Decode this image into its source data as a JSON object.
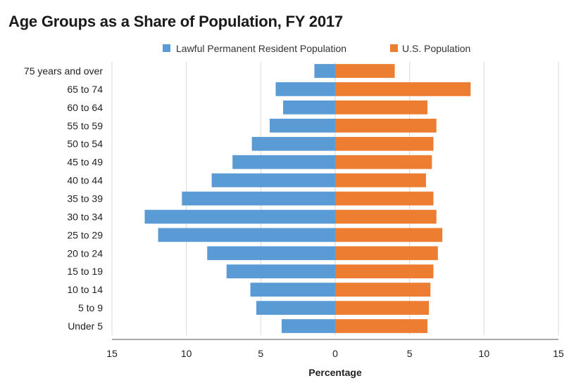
{
  "chart_data": {
    "type": "bar",
    "orientation": "horizontal-diverging",
    "title": "Age Groups as a Share of Population, FY 2017",
    "xlabel": "Percentage",
    "ylabel": "",
    "xlim": [
      -15,
      15
    ],
    "xticks": [
      -15,
      -10,
      -5,
      0,
      5,
      10,
      15
    ],
    "xtick_labels": [
      "15",
      "10",
      "5",
      "0",
      "5",
      "10",
      "15"
    ],
    "grid": true,
    "legend_position": "top",
    "categories": [
      "75 years and over",
      "65 to 74",
      "60 to 64",
      "55 to 59",
      "50 to 54",
      "45 to 49",
      "40 to 44",
      "35 to 39",
      "30 to 34",
      "25 to 29",
      "20 to 24",
      "15 to 19",
      "10 to 14",
      "5 to 9",
      "Under 5"
    ],
    "series": [
      {
        "name": "Lawful Permanent Resident Population",
        "color": "#5b9bd5",
        "side": "left",
        "values": [
          1.4,
          4.0,
          3.5,
          4.4,
          5.6,
          6.9,
          8.3,
          10.3,
          12.8,
          11.9,
          8.6,
          7.3,
          5.7,
          5.3,
          3.6
        ]
      },
      {
        "name": "U.S. Population",
        "color": "#ed7d31",
        "side": "right",
        "values": [
          4.0,
          9.1,
          6.2,
          6.8,
          6.6,
          6.5,
          6.1,
          6.6,
          6.8,
          7.2,
          6.9,
          6.6,
          6.4,
          6.3,
          6.2
        ]
      }
    ]
  }
}
